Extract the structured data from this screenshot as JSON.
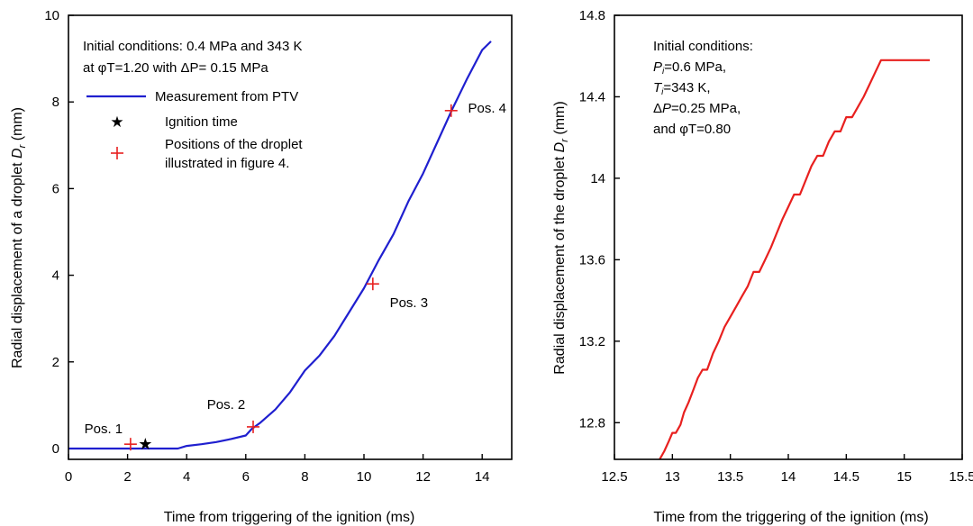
{
  "chart_data": [
    {
      "type": "line",
      "xlabel": "Time from triggering of the ignition (ms)",
      "ylabel": "Radial displacement of a droplet",
      "ylabel_symbol": "D",
      "ylabel_subscript": "r",
      "ylabel_unit": "(mm)",
      "xlim": [
        0,
        15
      ],
      "ylim": [
        -0.25,
        10
      ],
      "xticks": [
        0,
        2,
        4,
        6,
        8,
        10,
        12,
        14
      ],
      "yticks": [
        0,
        2,
        4,
        6,
        8,
        10
      ],
      "annotation_lines": [
        "Initial conditions: 0.4 MPa and 343 K",
        "at φT=1.20 with ΔP= 0.15 MPa"
      ],
      "legend": [
        "Measurement from PTV",
        "Ignition time",
        "Positions of the droplet",
        "illustrated in figure 4."
      ],
      "series": [
        {
          "name": "Measurement from PTV",
          "color": "#1f1fcf",
          "x": [
            0,
            1,
            2,
            3,
            3.7,
            4.0,
            4.5,
            5.0,
            5.5,
            6.0,
            6.2,
            6.5,
            7.0,
            7.5,
            8.0,
            8.5,
            9.0,
            9.5,
            10.0,
            10.5,
            11.0,
            11.5,
            12.0,
            12.5,
            13.0,
            13.5,
            14.0,
            14.3
          ],
          "y": [
            0,
            0,
            0,
            0,
            0,
            0.06,
            0.1,
            0.15,
            0.22,
            0.3,
            0.45,
            0.6,
            0.9,
            1.3,
            1.8,
            2.15,
            2.6,
            3.15,
            3.7,
            4.35,
            4.95,
            5.7,
            6.35,
            7.1,
            7.85,
            8.55,
            9.2,
            9.4
          ]
        }
      ],
      "ignition_point": {
        "x": 2.6,
        "y": 0.1,
        "color": "#000000"
      },
      "positions": [
        {
          "label": "Pos. 1",
          "x": 2.1,
          "y": 0.1
        },
        {
          "label": "Pos. 2",
          "x": 6.25,
          "y": 0.5
        },
        {
          "label": "Pos. 3",
          "x": 10.3,
          "y": 3.8
        },
        {
          "label": "Pos. 4",
          "x": 12.95,
          "y": 7.8
        }
      ],
      "position_color": "#e8201f"
    },
    {
      "type": "line",
      "xlabel": "Time from the triggering of the ignition (ms)",
      "ylabel": "Radial displacement of the droplet",
      "ylabel_symbol": "D",
      "ylabel_subscript": "r",
      "ylabel_unit": "(mm)",
      "xlim": [
        12.5,
        15.5
      ],
      "ylim": [
        12.62,
        14.8
      ],
      "xticks": [
        12.5,
        13,
        13.5,
        14,
        14.5,
        15,
        15.5
      ],
      "yticks": [
        12.8,
        13.2,
        13.6,
        14,
        14.4,
        14.8
      ],
      "annotation_lines": [
        "Initial conditions:",
        "P_i=0.6 MPa,",
        "T_i=343 K,",
        "ΔP=0.25 MPa,",
        "and φT=0.80"
      ],
      "annotation_rich": {
        "line1": "Initial conditions:",
        "p_sym": "P",
        "p_sub": "i",
        "p_rest": "=0.6 MPa,",
        "t_sym": "T",
        "t_sub": "i",
        "t_rest": "=343 K,",
        "dp_pre": "Δ",
        "dp_sym": "P",
        "dp_rest": "=0.25 MPa,",
        "phi": "and φT=0.80"
      },
      "series": [
        {
          "name": "",
          "color": "#e8201f",
          "x": [
            12.89,
            12.93,
            12.97,
            13.0,
            13.03,
            13.07,
            13.1,
            13.14,
            13.18,
            13.22,
            13.26,
            13.3,
            13.35,
            13.4,
            13.45,
            13.5,
            13.55,
            13.6,
            13.65,
            13.7,
            13.75,
            13.8,
            13.85,
            13.9,
            13.95,
            14.0,
            14.05,
            14.1,
            14.15,
            14.2,
            14.25,
            14.3,
            14.35,
            14.4,
            14.45,
            14.5,
            14.55,
            14.6,
            14.65,
            14.7,
            14.75,
            14.8,
            14.85,
            14.88,
            15.05,
            15.22
          ],
          "y": [
            12.62,
            12.66,
            12.71,
            12.75,
            12.75,
            12.79,
            12.85,
            12.9,
            12.96,
            13.02,
            13.06,
            13.06,
            13.14,
            13.2,
            13.27,
            13.32,
            13.37,
            13.42,
            13.47,
            13.54,
            13.54,
            13.6,
            13.66,
            13.73,
            13.8,
            13.86,
            13.92,
            13.92,
            13.99,
            14.06,
            14.11,
            14.11,
            14.18,
            14.23,
            14.23,
            14.3,
            14.3,
            14.35,
            14.4,
            14.46,
            14.52,
            14.58,
            14.58,
            14.58,
            14.58,
            14.58
          ]
        }
      ]
    }
  ]
}
